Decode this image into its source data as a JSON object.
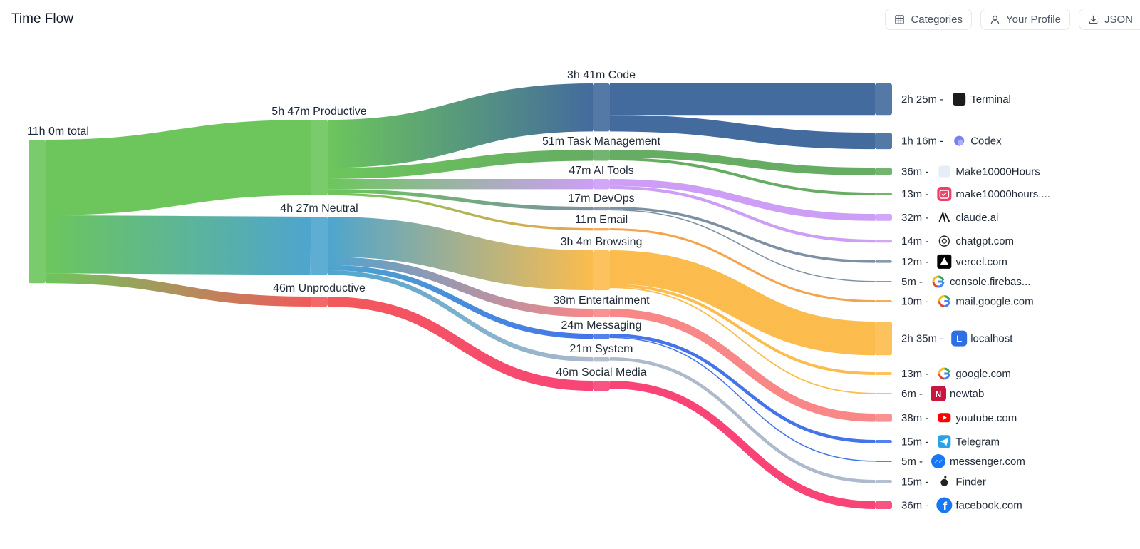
{
  "header": {
    "title": "Time Flow",
    "buttons": [
      {
        "label": "Categories",
        "icon": "grid-icon"
      },
      {
        "label": "Your Profile",
        "icon": "user-icon"
      },
      {
        "label": "JSON",
        "icon": "download-icon"
      }
    ]
  },
  "chart_data": {
    "type": "sankey",
    "title": "",
    "root": {
      "label": "11h 0m total",
      "minutes": 660
    },
    "groups": [
      {
        "label": "5h 47m Productive",
        "minutes": 347,
        "color": "#5cc04a",
        "categories": [
          {
            "label": "3h 41m Code",
            "minutes": 221,
            "color": "#2f5b93",
            "apps": [
              {
                "time": "2h 25m",
                "name": "Terminal",
                "minutes": 145,
                "icon": "terminal-icon"
              },
              {
                "time": "1h 16m",
                "name": "Codex",
                "minutes": 76,
                "icon": "codex-icon"
              }
            ]
          },
          {
            "label": "51m Task Management",
            "minutes": 51,
            "color": "#55a352",
            "apps": [
              {
                "time": "36m",
                "name": "Make10000Hours",
                "minutes": 36,
                "icon": "app-icon"
              },
              {
                "time": "13m",
                "name": "make10000hours....",
                "minutes": 13,
                "icon": "calendar-check-icon"
              }
            ]
          },
          {
            "label": "47m AI Tools",
            "minutes": 47,
            "color": "#c894f5",
            "apps": [
              {
                "time": "32m",
                "name": "claude.ai",
                "minutes": 32,
                "icon": "claude-icon"
              },
              {
                "time": "14m",
                "name": "chatgpt.com",
                "minutes": 14,
                "icon": "chatgpt-icon"
              }
            ]
          },
          {
            "label": "17m DevOps",
            "minutes": 17,
            "color": "#6f8499",
            "apps": [
              {
                "time": "12m",
                "name": "vercel.com",
                "minutes": 12,
                "icon": "vercel-icon"
              },
              {
                "time": "5m",
                "name": "console.firebas...",
                "minutes": 5,
                "icon": "google-icon"
              }
            ]
          },
          {
            "label": "11m Email",
            "minutes": 11,
            "color": "#f29a3a",
            "apps": [
              {
                "time": "10m",
                "name": "mail.google.com",
                "minutes": 10,
                "icon": "google-icon"
              }
            ]
          }
        ]
      },
      {
        "label": "4h 27m Neutral",
        "minutes": 267,
        "color": "#3b9bc9",
        "categories": [
          {
            "label": "3h 4m Browsing",
            "minutes": 184,
            "color": "#fbb53a",
            "apps": [
              {
                "time": "2h 35m",
                "name": "localhost",
                "minutes": 155,
                "icon": "localhost-icon"
              },
              {
                "time": "13m",
                "name": "google.com",
                "minutes": 13,
                "icon": "google-icon"
              },
              {
                "time": "6m",
                "name": "newtab",
                "minutes": 6,
                "icon": "newtab-icon"
              }
            ]
          },
          {
            "label": "38m Entertainment",
            "minutes": 38,
            "color": "#f87a7a",
            "apps": [
              {
                "time": "38m",
                "name": "youtube.com",
                "minutes": 38,
                "icon": "youtube-icon"
              }
            ]
          },
          {
            "label": "24m Messaging",
            "minutes": 24,
            "color": "#2f65e6",
            "apps": [
              {
                "time": "15m",
                "name": "Telegram",
                "minutes": 15,
                "icon": "telegram-icon"
              },
              {
                "time": "5m",
                "name": "messenger.com",
                "minutes": 5,
                "icon": "messenger-icon"
              }
            ]
          },
          {
            "label": "21m System",
            "minutes": 21,
            "color": "#a3b2c7",
            "apps": [
              {
                "time": "15m",
                "name": "Finder",
                "minutes": 15,
                "icon": "apple-icon"
              }
            ]
          }
        ]
      },
      {
        "label": "46m Unproductive",
        "minutes": 46,
        "color": "#f04848",
        "categories": [
          {
            "label": "46m Social Media",
            "minutes": 46,
            "color": "#f72f68",
            "apps": [
              {
                "time": "36m",
                "name": "facebook.com",
                "minutes": 36,
                "icon": "facebook-icon"
              }
            ]
          }
        ]
      }
    ]
  }
}
